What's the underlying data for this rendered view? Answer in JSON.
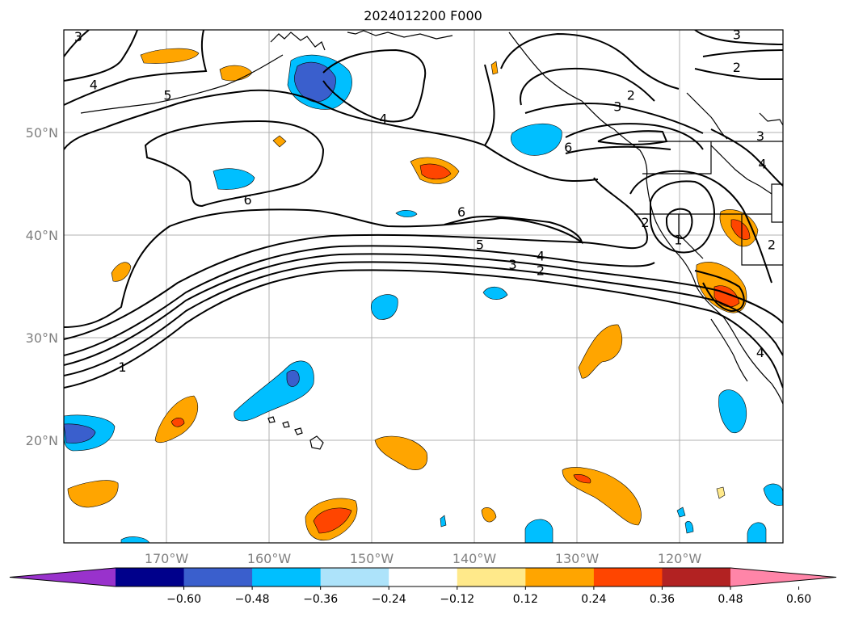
{
  "title": "2024012200 F000",
  "map": {
    "lon_range": [
      -180,
      -110
    ],
    "lat_range": [
      10,
      60
    ],
    "lat_labels": [
      "20°N",
      "30°N",
      "40°N",
      "50°N"
    ],
    "lon_labels": [
      "170°W",
      "160°W",
      "150°W",
      "140°W",
      "130°W",
      "120°W"
    ],
    "gridlines": true
  },
  "colorbar": {
    "ticks": [
      "−0.60",
      "−0.48",
      "−0.36",
      "−0.24",
      "−0.12",
      "0.12",
      "0.24",
      "0.36",
      "0.48",
      "0.60"
    ],
    "colors": [
      "#9932CC",
      "#00008B",
      "#3A5FCD",
      "#00BFFF",
      "#ADE3FA",
      "#FFFFFF",
      "#FFE98A",
      "#FFA500",
      "#FF4500",
      "#B22222",
      "#FF85A8"
    ],
    "extend": "both"
  },
  "contours": {
    "levels": [
      "1",
      "2",
      "3",
      "4",
      "5",
      "6"
    ],
    "labels": [
      {
        "text": "3",
        "lon": -178.6,
        "lat": 59.3
      },
      {
        "text": "4",
        "lon": -177.1,
        "lat": 54.6
      },
      {
        "text": "5",
        "lon": -169.9,
        "lat": 53.6
      },
      {
        "text": "4",
        "lon": -148.9,
        "lat": 51.3
      },
      {
        "text": "6",
        "lon": -162.1,
        "lat": 43.4
      },
      {
        "text": "6",
        "lon": -141.3,
        "lat": 42.2
      },
      {
        "text": "5",
        "lon": -139.5,
        "lat": 39.0
      },
      {
        "text": "4",
        "lon": -133.6,
        "lat": 37.9
      },
      {
        "text": "3",
        "lon": -136.3,
        "lat": 37.1
      },
      {
        "text": "2",
        "lon": -133.6,
        "lat": 36.5
      },
      {
        "text": "1",
        "lon": -174.3,
        "lat": 27.1
      },
      {
        "text": "3",
        "lon": -126.1,
        "lat": 52.5
      },
      {
        "text": "2",
        "lon": -124.8,
        "lat": 53.6
      },
      {
        "text": "6",
        "lon": -130.9,
        "lat": 48.5
      },
      {
        "text": "3",
        "lon": -114.5,
        "lat": 59.5
      },
      {
        "text": "2",
        "lon": -114.5,
        "lat": 56.3
      },
      {
        "text": "3",
        "lon": -112.2,
        "lat": 49.6
      },
      {
        "text": "4",
        "lon": -112.0,
        "lat": 46.9
      },
      {
        "text": "2",
        "lon": -123.4,
        "lat": 41.2
      },
      {
        "text": "1",
        "lon": -120.2,
        "lat": 39.5
      },
      {
        "text": "2",
        "lon": -111.1,
        "lat": 39.0
      },
      {
        "text": "4",
        "lon": -112.2,
        "lat": 28.5
      }
    ]
  }
}
